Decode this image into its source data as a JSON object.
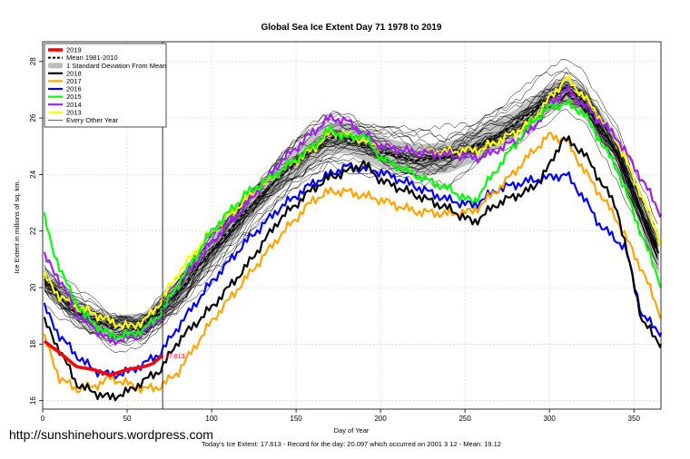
{
  "chart_data": {
    "type": "line",
    "title": "Global Sea Ice Extent Day 71 1978 to 2019",
    "xlabel": "Day of Year",
    "ylabel": "Ice Extent in millions of sq. km.",
    "xlim": [
      0,
      366
    ],
    "ylim": [
      15.7,
      28.7
    ],
    "x_ticks": [
      0,
      50,
      100,
      150,
      200,
      250,
      300,
      350
    ],
    "y_ticks": [
      16,
      18,
      20,
      22,
      24,
      26,
      28
    ],
    "grid": true,
    "legend_position": "top-left",
    "current_day": 71,
    "current_value_label": "17.613",
    "footer": "Today's Ice Extent: 17.613  - Record for the day: 20.097 which occurred on 2001 3 12  - Mean: 19.12",
    "legend": [
      {
        "name": "2019",
        "color": "#ff0000",
        "style": "thick"
      },
      {
        "name": "Mean 1981-2010",
        "color": "#000000",
        "style": "dashed"
      },
      {
        "name": "1 Standard Deviation From Mean",
        "color": "#bdbdbd",
        "style": "band"
      },
      {
        "name": "2018",
        "color": "#000000",
        "style": "thick"
      },
      {
        "name": "2017",
        "color": "#ffa500",
        "style": "thick"
      },
      {
        "name": "2016",
        "color": "#0000ff",
        "style": "thick"
      },
      {
        "name": "2015",
        "color": "#00ff00",
        "style": "thick"
      },
      {
        "name": "2014",
        "color": "#a020f0",
        "style": "thick"
      },
      {
        "name": "2013",
        "color": "#ffff00",
        "style": "thick"
      },
      {
        "name": "Every Other Year",
        "color": "#000000",
        "style": "thin"
      }
    ],
    "mean": {
      "x": [
        1,
        20,
        40,
        60,
        80,
        100,
        120,
        140,
        160,
        170,
        180,
        200,
        220,
        240,
        260,
        280,
        300,
        310,
        320,
        340,
        366
      ],
      "y": [
        20.3,
        19.2,
        18.6,
        18.7,
        19.8,
        21.3,
        22.7,
        23.9,
        24.9,
        25.3,
        25.3,
        24.8,
        24.5,
        24.6,
        25.1,
        25.8,
        26.7,
        27.0,
        26.6,
        24.8,
        21.0
      ]
    },
    "std": [
      0.45,
      0.4,
      0.4,
      0.4,
      0.45,
      0.5,
      0.5,
      0.5,
      0.55,
      0.55,
      0.55,
      0.55,
      0.55,
      0.55,
      0.55,
      0.5,
      0.5,
      0.5,
      0.55,
      0.6,
      0.7
    ],
    "series": [
      {
        "name": "2019",
        "color": "#ff0000",
        "width": 3.6,
        "x": [
          1,
          10,
          20,
          30,
          40,
          50,
          60,
          65,
          71
        ],
        "y": [
          18.1,
          17.7,
          17.2,
          17.1,
          16.9,
          17.1,
          17.2,
          17.3,
          17.6
        ]
      },
      {
        "name": "2018",
        "color": "#000000",
        "width": 2.2,
        "x": [
          1,
          10,
          20,
          30,
          40,
          50,
          60,
          70,
          80,
          100,
          120,
          140,
          160,
          170,
          180,
          190,
          200,
          220,
          240,
          255,
          270,
          290,
          300,
          308,
          320,
          340,
          355,
          366
        ],
        "y": [
          18.8,
          17.8,
          16.6,
          16.3,
          16.1,
          16.3,
          16.7,
          17.1,
          18.1,
          19.3,
          20.7,
          22.4,
          23.5,
          23.9,
          24.1,
          24.4,
          23.8,
          23.3,
          22.8,
          22.3,
          23.0,
          23.5,
          24.3,
          25.3,
          24.8,
          22.8,
          18.8,
          18.0
        ]
      },
      {
        "name": "2017",
        "color": "#ffa500",
        "width": 2.2,
        "x": [
          1,
          10,
          20,
          30,
          40,
          50,
          60,
          70,
          80,
          100,
          120,
          140,
          160,
          170,
          180,
          200,
          220,
          240,
          255,
          270,
          290,
          300,
          310,
          320,
          340,
          355,
          366
        ],
        "y": [
          18.2,
          16.8,
          16.4,
          16.5,
          16.8,
          16.6,
          16.4,
          16.5,
          17.0,
          18.8,
          20.3,
          21.8,
          23.1,
          23.4,
          23.4,
          23.1,
          22.7,
          22.6,
          22.7,
          23.5,
          24.8,
          25.4,
          25.2,
          24.2,
          22.4,
          20.6,
          19.0
        ]
      },
      {
        "name": "2016",
        "color": "#0000ff",
        "width": 2.2,
        "x": [
          1,
          10,
          20,
          30,
          40,
          50,
          60,
          70,
          80,
          100,
          120,
          140,
          160,
          170,
          180,
          200,
          220,
          240,
          255,
          270,
          290,
          300,
          310,
          320,
          330,
          345,
          355,
          366
        ],
        "y": [
          19.3,
          18.3,
          17.6,
          17.1,
          16.9,
          17.0,
          17.3,
          17.7,
          18.6,
          20.2,
          21.6,
          22.8,
          23.7,
          24.0,
          24.3,
          24.1,
          23.6,
          23.1,
          22.9,
          23.5,
          23.8,
          23.9,
          24.0,
          23.2,
          22.2,
          21.4,
          19.0,
          18.4
        ]
      },
      {
        "name": "2015",
        "color": "#00ff00",
        "width": 2.2,
        "x": [
          1,
          5,
          15,
          25,
          40,
          50,
          60,
          70,
          80,
          100,
          120,
          140,
          160,
          170,
          180,
          190,
          200,
          220,
          240,
          255,
          270,
          290,
          300,
          310,
          320,
          340,
          355,
          366
        ],
        "y": [
          22.5,
          21.5,
          20.0,
          19.0,
          18.3,
          18.3,
          18.5,
          19.1,
          20.1,
          22.0,
          23.3,
          24.1,
          25.0,
          25.6,
          25.3,
          25.4,
          24.6,
          24.0,
          23.5,
          23.0,
          24.3,
          25.9,
          26.4,
          26.5,
          26.2,
          24.2,
          21.8,
          20.1
        ]
      },
      {
        "name": "2014",
        "color": "#a020f0",
        "width": 2.2,
        "x": [
          1,
          10,
          20,
          30,
          40,
          50,
          60,
          70,
          80,
          100,
          120,
          140,
          160,
          170,
          180,
          200,
          220,
          240,
          260,
          280,
          290,
          300,
          310,
          320,
          340,
          355,
          366
        ],
        "y": [
          21.1,
          20.3,
          19.1,
          18.6,
          18.1,
          18.2,
          18.4,
          19.0,
          20.1,
          21.6,
          22.9,
          24.4,
          25.5,
          26.0,
          25.9,
          25.0,
          24.8,
          24.7,
          24.6,
          25.2,
          25.6,
          26.5,
          27.0,
          26.5,
          25.3,
          23.8,
          22.6
        ]
      },
      {
        "name": "2013",
        "color": "#ffff00",
        "width": 2.2,
        "x": [
          1,
          10,
          20,
          30,
          40,
          50,
          60,
          70,
          80,
          100,
          120,
          140,
          160,
          170,
          180,
          200,
          220,
          240,
          260,
          280,
          290,
          300,
          310,
          320,
          340,
          355,
          366
        ],
        "y": [
          20.4,
          19.7,
          19.3,
          19.1,
          18.8,
          18.6,
          18.8,
          19.5,
          20.5,
          22.0,
          23.1,
          24.1,
          24.9,
          25.5,
          25.4,
          25.0,
          24.8,
          24.8,
          24.9,
          25.5,
          25.9,
          26.7,
          27.4,
          26.8,
          25.2,
          23.2,
          21.6
        ]
      }
    ]
  },
  "url_text": "http://sunshinehours.wordpress.com"
}
